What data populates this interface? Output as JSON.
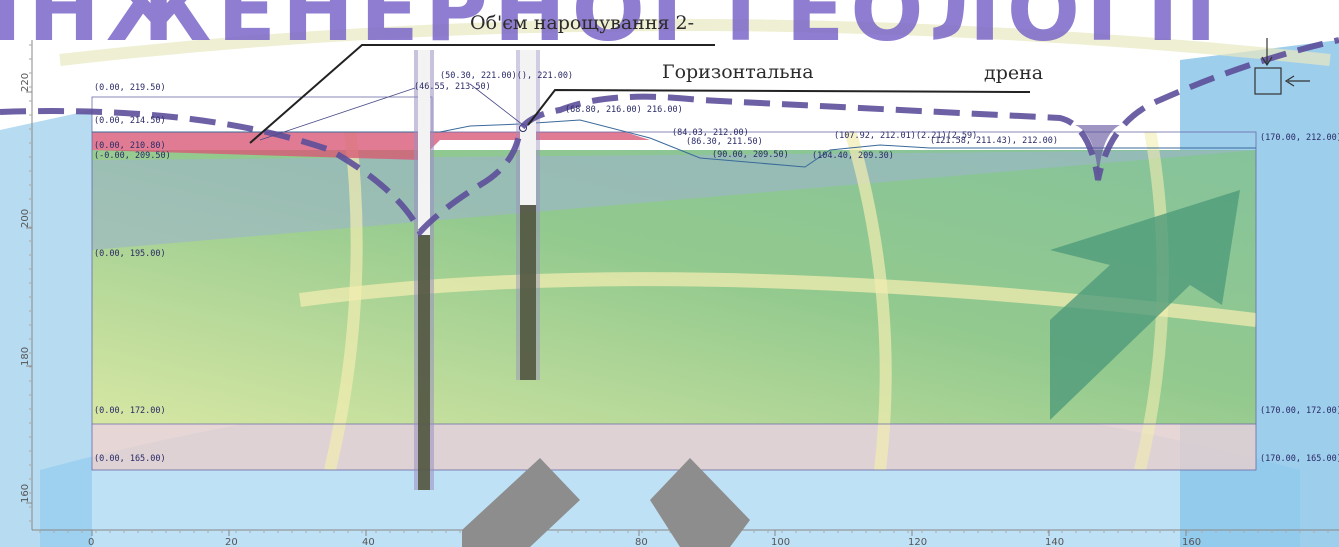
{
  "watermark": {
    "text": "ІНЖЕНЕРНОЇ ГЕОЛОГІЇ",
    "color": "#7a66c8"
  },
  "annotations": {
    "volume": "Об'єм нарощування 2-",
    "horizontal": "Горизонтальна",
    "drain": "дрена"
  },
  "point_labels": [
    {
      "id": "p1",
      "text": "(0.00, 219.50)"
    },
    {
      "id": "p2",
      "text": "(0.00, 214.50)"
    },
    {
      "id": "p3",
      "text": "(0.00, 210.80)"
    },
    {
      "id": "p4",
      "text": "(-0.00, 209.50)"
    },
    {
      "id": "p5",
      "text": "(0.00, 195.00)"
    },
    {
      "id": "p6",
      "text": "(0.00, 172.00)"
    },
    {
      "id": "p7",
      "text": "(0.00, 165.00)"
    },
    {
      "id": "p8",
      "text": "(46.55, 213.50)"
    },
    {
      "id": "p9",
      "text": "(50.30, 221.00)(), 221.00)"
    },
    {
      "id": "p10",
      "text": "(68.80, 216.00) 216.00)"
    },
    {
      "id": "p11",
      "text": "(84.03, 212.00)"
    },
    {
      "id": "p12",
      "text": "(86.30, 211.50)"
    },
    {
      "id": "p13",
      "text": "(90.00, 209.50)"
    },
    {
      "id": "p14",
      "text": "(104.40, 209.30)"
    },
    {
      "id": "p15",
      "text": "(107.92, 212.01)(2.21)(2.59)"
    },
    {
      "id": "p16",
      "text": "(121.58, 211.43), 212.00)"
    },
    {
      "id": "p17",
      "text": "(170.00, 212.00)"
    },
    {
      "id": "p18",
      "text": "(170.00, 172.00)"
    },
    {
      "id": "p19",
      "text": "(170.00, 165.00)"
    }
  ],
  "axes": {
    "x_ticks": [
      "0",
      "20",
      "40",
      "60",
      "80",
      "100",
      "120",
      "140",
      "160"
    ],
    "y_ticks": [
      "220",
      "200",
      "180",
      "160"
    ]
  },
  "colors": {
    "upper_fill": "#d85a78",
    "green_layer": "#8fc98a",
    "yellow_layer": "#d9e6a2",
    "bottom_layer": "#e3cfcf",
    "well_dark": "#555a3e",
    "dashed_line": "#5d4f9a",
    "arrow": "#4f9b7a",
    "sky": "#6fb7e3"
  }
}
